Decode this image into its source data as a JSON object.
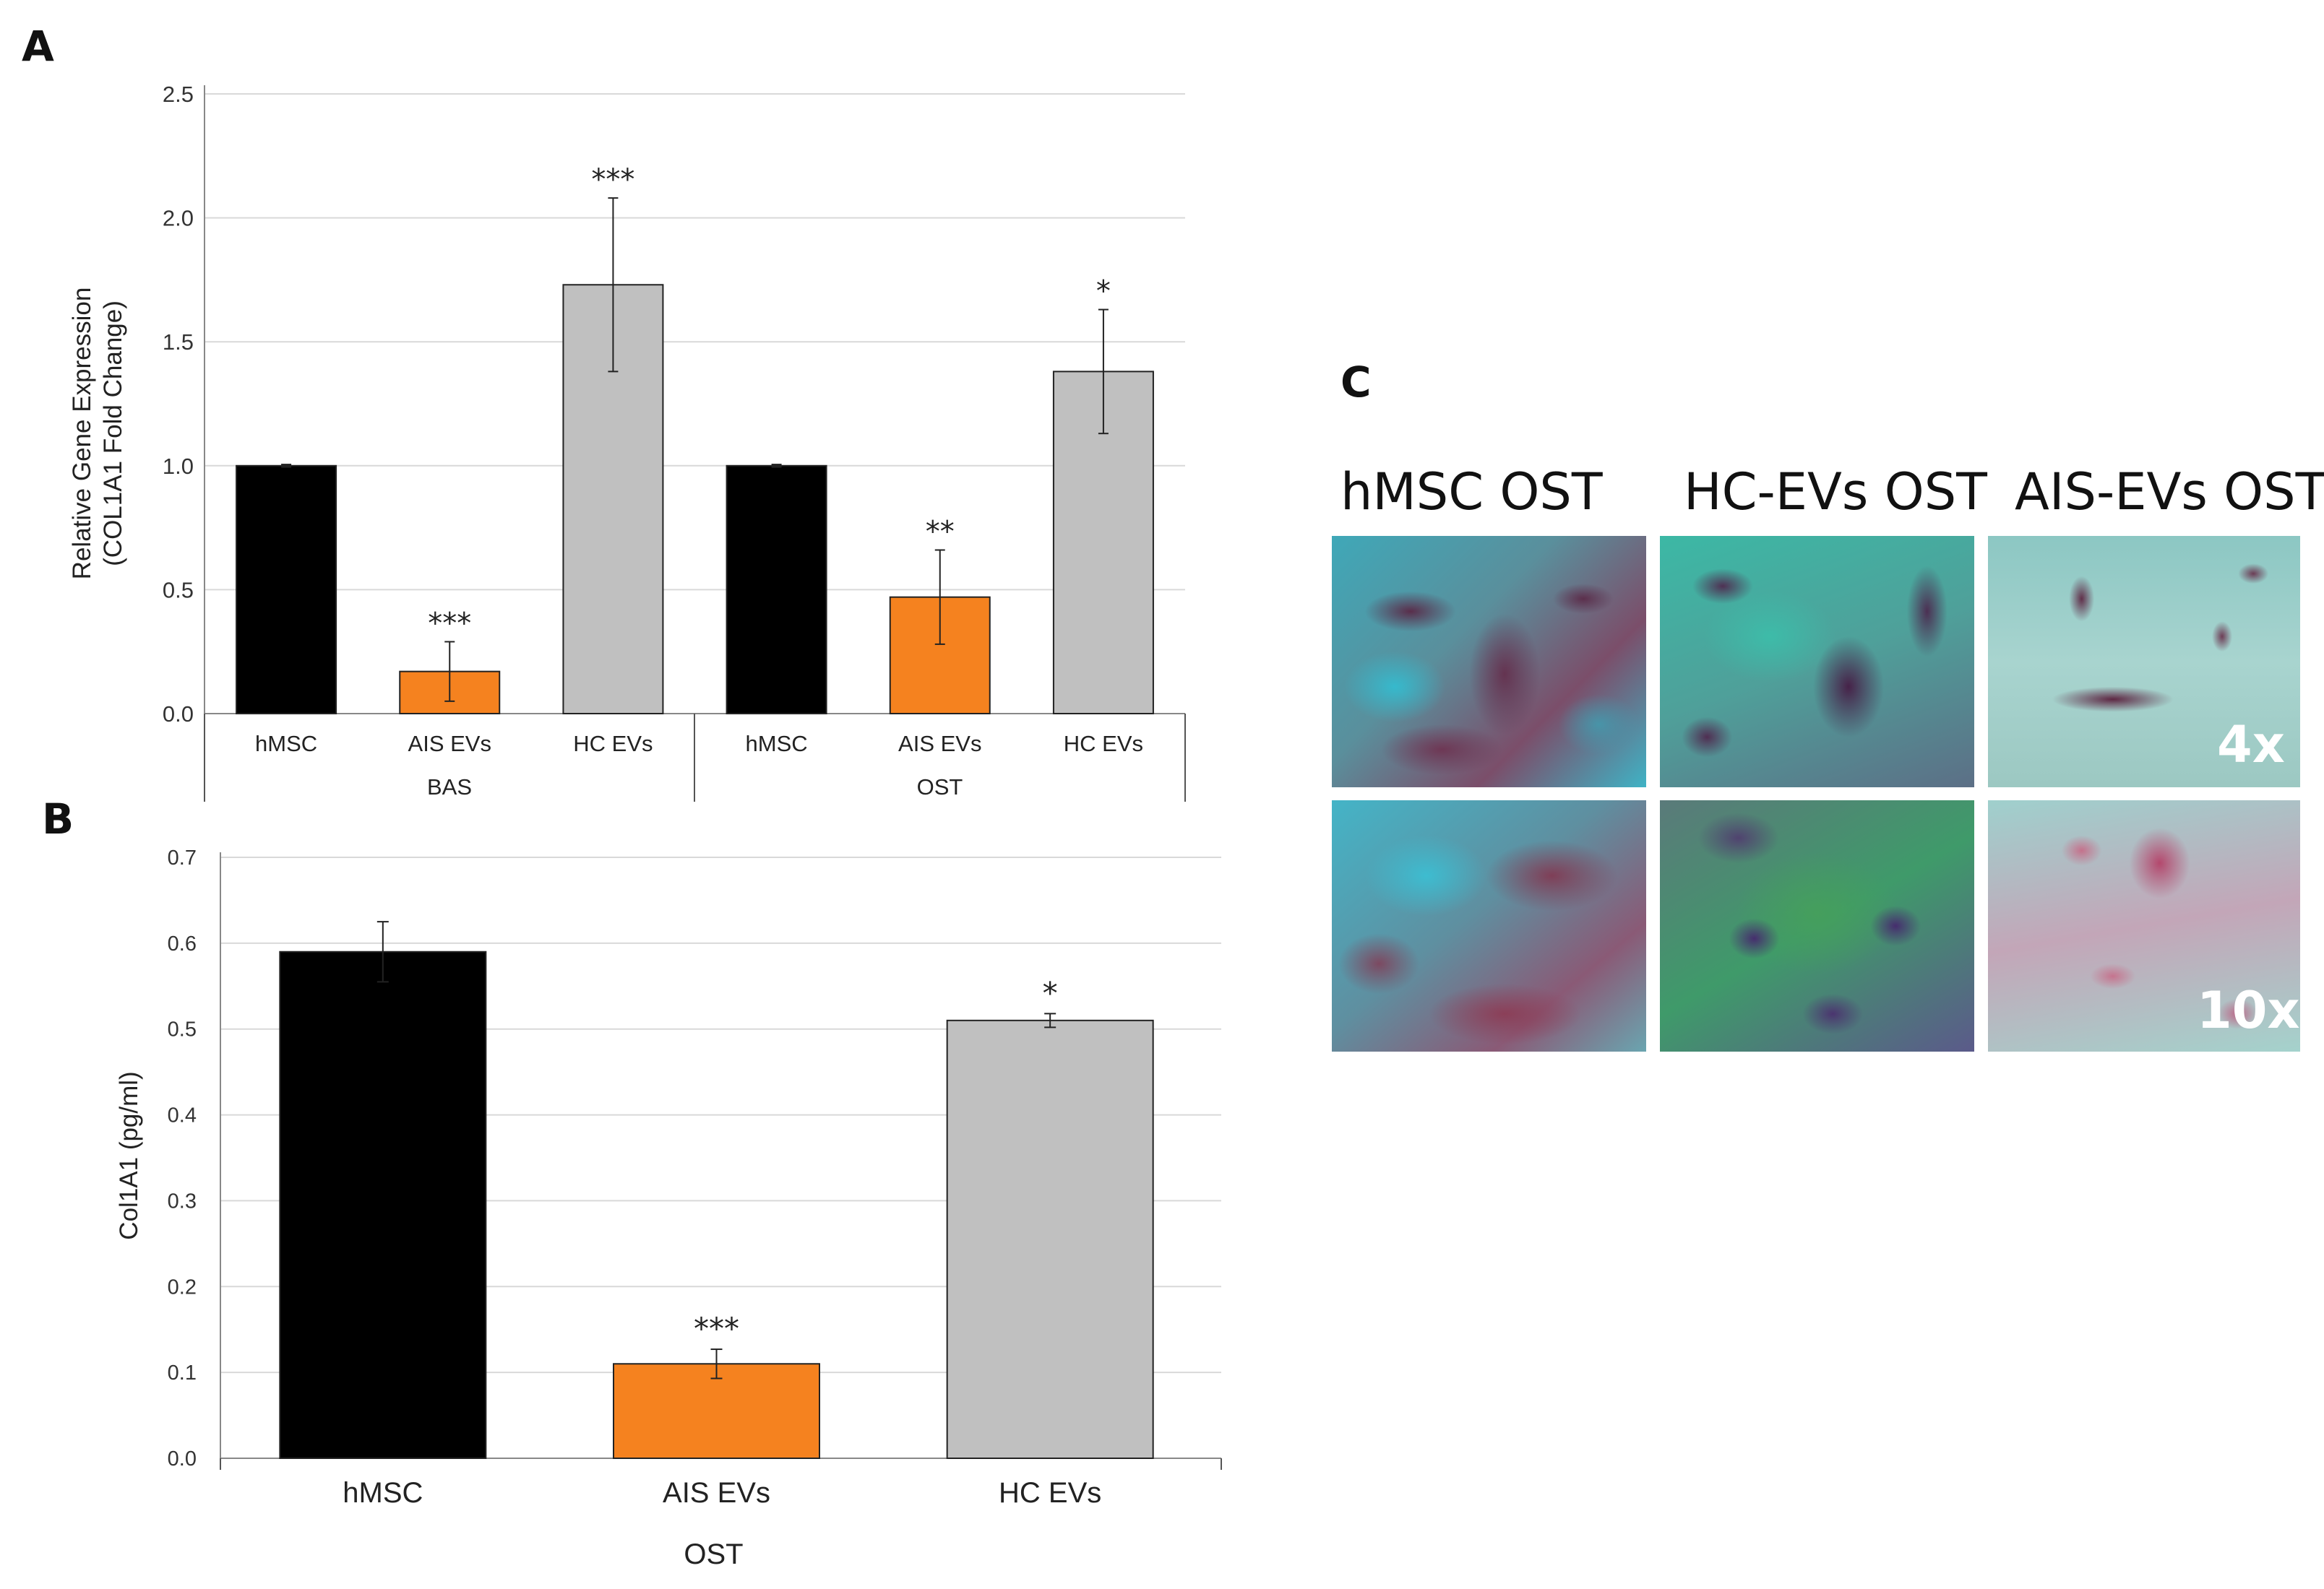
{
  "panels": {
    "a_label": "A",
    "b_label": "B",
    "c_label": "C"
  },
  "chart_data": [
    {
      "id": "A",
      "type": "bar",
      "ylabel_line1": "Relative Gene Expression",
      "ylabel_line2": "(COL1A1 Fold Change)",
      "ylim": [
        0,
        2.5
      ],
      "yticks": [
        "0.0",
        "0.5",
        "1.0",
        "1.5",
        "2.0",
        "2.5"
      ],
      "grid": true,
      "categories": [
        "hMSC",
        "AIS EVs",
        "HC EVs",
        "hMSC",
        "AIS  EVs",
        "HC EVs"
      ],
      "groups": [
        "BAS",
        "OST"
      ],
      "values": [
        1.0,
        0.17,
        1.73,
        1.0,
        0.47,
        1.38
      ],
      "errors": [
        0.005,
        0.12,
        0.35,
        0.005,
        0.19,
        0.25
      ],
      "significance": [
        "",
        "***",
        "***",
        "",
        "**",
        "*"
      ],
      "colors": [
        "#000000",
        "#f5821f",
        "#c0c0c0",
        "#000000",
        "#f5821f",
        "#c0c0c0"
      ]
    },
    {
      "id": "B",
      "type": "bar",
      "ylabel": "Col1A1 (pg/ml)",
      "ylim": [
        0,
        0.7
      ],
      "yticks": [
        "0.0",
        "0.1",
        "0.2",
        "0.3",
        "0.4",
        "0.5",
        "0.6",
        "0.7"
      ],
      "grid": true,
      "categories": [
        "hMSC",
        "AIS EVs",
        "HC EVs"
      ],
      "group": "OST",
      "values": [
        0.59,
        0.11,
        0.51
      ],
      "errors": [
        0.035,
        0.017,
        0.008
      ],
      "significance": [
        "",
        "***",
        "*"
      ],
      "colors": [
        "#000000",
        "#f5821f",
        "#c0c0c0"
      ]
    }
  ],
  "micrographs": {
    "columns": [
      "hMSC OST",
      "HC-EVs OST",
      "AIS-EVs OST"
    ],
    "magnifications": [
      "4x",
      "10x"
    ]
  }
}
